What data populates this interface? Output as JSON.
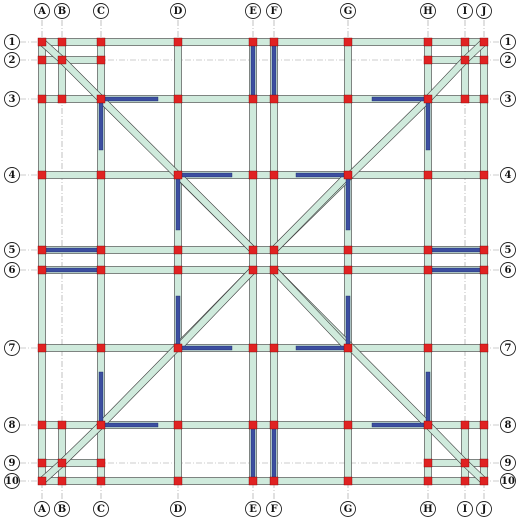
{
  "grid": {
    "columns": [
      "A",
      "B",
      "C",
      "D",
      "E",
      "F",
      "G",
      "H",
      "I",
      "J"
    ],
    "rows": [
      "1",
      "2",
      "3",
      "4",
      "5",
      "6",
      "7",
      "8",
      "9",
      "10"
    ]
  },
  "legend_colors": {
    "beam_fill": "#cfeadc",
    "column": "#e02222",
    "shear_wall": "#3c4fa0"
  }
}
